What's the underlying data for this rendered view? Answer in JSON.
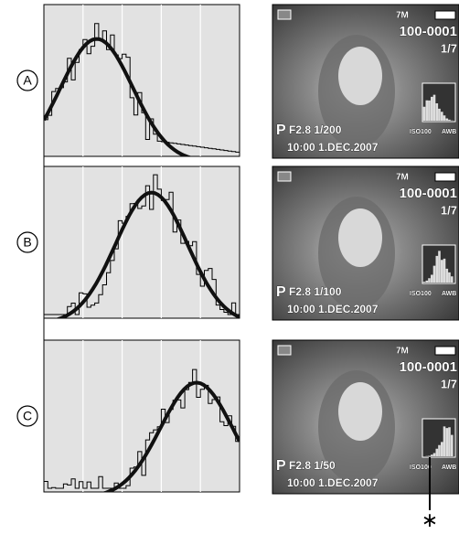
{
  "rows": [
    {
      "label": "A",
      "screen": {
        "size": "7M",
        "file": "100-0001",
        "count": "1/7",
        "mode": "P",
        "exposure": "F2.8 1/200",
        "iso": "ISO100",
        "wb": "AWB",
        "datetime": "10:00  1.DEC.2007"
      }
    },
    {
      "label": "B",
      "screen": {
        "size": "7M",
        "file": "100-0001",
        "count": "1/7",
        "mode": "P",
        "exposure": "F2.8 1/100",
        "iso": "ISO100",
        "wb": "AWB",
        "datetime": "10:00  1.DEC.2007"
      }
    },
    {
      "label": "C",
      "screen": {
        "size": "7M",
        "file": "100-0001",
        "count": "1/7",
        "mode": "P",
        "exposure": "F2.8 1/50",
        "iso": "ISO100",
        "wb": "AWB",
        "datetime": "10:00  1.DEC.2007"
      }
    }
  ],
  "footnote_marker": "∗"
}
